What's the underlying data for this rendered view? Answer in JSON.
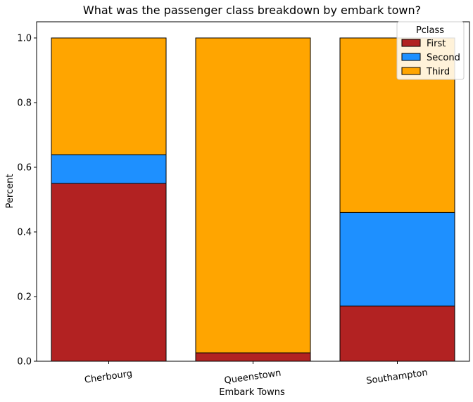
{
  "chart_data": {
    "type": "bar",
    "stacked": true,
    "title": "What was the passenger class breakdown by embark town?",
    "xlabel": "Embark Towns",
    "ylabel": "Percent",
    "categories": [
      "Cherbourg",
      "Queenstown",
      "Southampton"
    ],
    "series": [
      {
        "name": "First",
        "color": "#b22222",
        "values": [
          0.55,
          0.026,
          0.171
        ]
      },
      {
        "name": "Second",
        "color": "#1e90ff",
        "values": [
          0.089,
          0.0,
          0.289
        ]
      },
      {
        "name": "Third",
        "color": "#ffa500",
        "values": [
          0.361,
          0.974,
          0.54
        ]
      }
    ],
    "ylim": [
      0,
      1.05
    ],
    "yticks": [
      0.0,
      0.2,
      0.4,
      0.6,
      0.8,
      1.0
    ],
    "ytick_labels": [
      "0.0",
      "0.2",
      "0.4",
      "0.6",
      "0.8",
      "1.0"
    ],
    "legend": {
      "title": "Pclass",
      "position": "top-right"
    },
    "grid": false
  }
}
